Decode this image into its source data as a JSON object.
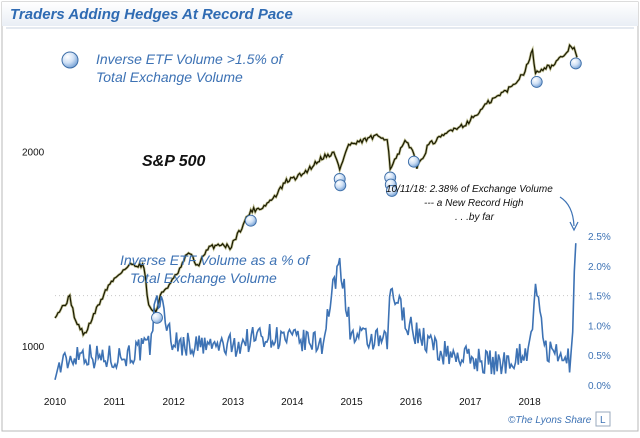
{
  "chart_data": {
    "type": "line",
    "title": "Traders Adding Hedges At Record Pace",
    "x_ticks": [
      "2010",
      "2011",
      "2012",
      "2013",
      "2014",
      "2015",
      "2016",
      "2017",
      "2018"
    ],
    "xlim": [
      2010.0,
      2018.85
    ],
    "left_axis": {
      "ticks": [
        "1000",
        "2000"
      ],
      "ylim": [
        870,
        3000
      ],
      "scale": "log"
    },
    "right_axis": {
      "ticks": [
        "0.0%",
        "0.5%",
        "1.0%",
        "1.5%",
        "2.0%",
        "2.5%"
      ],
      "ylim": [
        0.0,
        2.5
      ]
    },
    "threshold_line": 1.5,
    "series": [
      {
        "name": "S&P 500",
        "axis": "left",
        "color": "#1a1a00",
        "x": [
          2010.0,
          2010.1,
          2010.25,
          2010.35,
          2010.5,
          2010.7,
          2010.9,
          2011.1,
          2011.3,
          2011.5,
          2011.58,
          2011.7,
          2011.8,
          2011.95,
          2012.1,
          2012.25,
          2012.4,
          2012.6,
          2012.8,
          2012.95,
          2013.1,
          2013.3,
          2013.5,
          2013.7,
          2013.9,
          2014.1,
          2014.25,
          2014.5,
          2014.7,
          2014.8,
          2014.95,
          2015.1,
          2015.3,
          2015.45,
          2015.6,
          2015.65,
          2015.75,
          2015.9,
          2016.05,
          2016.1,
          2016.3,
          2016.5,
          2016.7,
          2016.9,
          2017.1,
          2017.3,
          2017.5,
          2017.7,
          2017.9,
          2018.05,
          2018.1,
          2018.2,
          2018.4,
          2018.55,
          2018.7,
          2018.75,
          2018.8
        ],
        "values": [
          1115,
          1140,
          1190,
          1090,
          1040,
          1140,
          1240,
          1300,
          1340,
          1330,
          1150,
          1130,
          1210,
          1250,
          1310,
          1400,
          1330,
          1420,
          1440,
          1420,
          1500,
          1620,
          1640,
          1700,
          1800,
          1830,
          1870,
          1960,
          1990,
          1880,
          2050,
          2060,
          2100,
          2110,
          2100,
          1890,
          1950,
          2070,
          2000,
          1880,
          2050,
          2100,
          2170,
          2200,
          2280,
          2380,
          2450,
          2520,
          2650,
          2860,
          2650,
          2690,
          2720,
          2800,
          2920,
          2900,
          2800
        ]
      },
      {
        "name": "Inverse ETF Volume as a % of Total Exchange Volume",
        "axis": "right",
        "color": "#3d72b4",
        "x": [
          2010.0,
          2010.4,
          2010.8,
          2011.2,
          2011.6,
          2011.72,
          2012.0,
          2012.5,
          2013.0,
          2013.5,
          2014.0,
          2014.5,
          2014.8,
          2015.0,
          2015.6,
          2015.66,
          2016.0,
          2016.5,
          2017.0,
          2017.5,
          2018.0,
          2018.1,
          2018.3,
          2018.5,
          2018.7,
          2018.78
        ],
        "values": [
          0.25,
          0.55,
          0.45,
          0.5,
          0.65,
          1.55,
          0.7,
          0.65,
          0.65,
          0.85,
          0.75,
          0.7,
          2.1,
          0.8,
          0.7,
          1.6,
          0.95,
          0.55,
          0.45,
          0.35,
          0.6,
          1.55,
          0.55,
          0.45,
          0.4,
          2.38
        ]
      }
    ],
    "hedge_spike_dates": [
      2011.72,
      2013.3,
      2014.8,
      2014.81,
      2015.65,
      2015.66,
      2015.68,
      2016.05,
      2018.12,
      2018.78
    ],
    "annotations": {
      "legend_marker_label": "Inverse ETF Volume >1.5% of Total Exchange Volume",
      "sp_label": "S&P 500",
      "ratio_label": "Inverse ETF Volume as a % of Total Exchange Volume",
      "record_note": [
        "10/11/18: 2.38% of Exchange Volume",
        "--- a New Record High",
        ". . .by far"
      ],
      "copyright": "©The Lyons Share",
      "logo": "L"
    },
    "grid": false,
    "legend_position": "top-left"
  }
}
